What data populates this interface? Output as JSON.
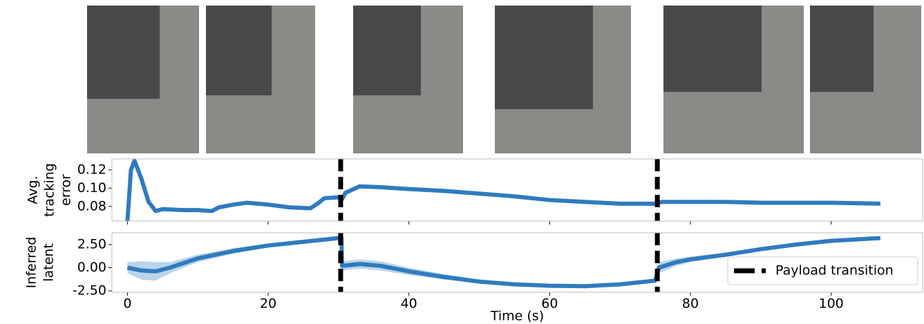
{
  "chart_data": [
    {
      "type": "line",
      "ylabel": [
        "Avg.",
        "tracking",
        "error"
      ],
      "xlim": [
        -2.2,
        113
      ],
      "ylim": [
        0.064,
        0.132
      ],
      "xticks": [
        0,
        20,
        40,
        60,
        80,
        100
      ],
      "yticks": [
        {
          "value": 0.08,
          "label": "0.08"
        },
        {
          "value": 0.1,
          "label": "0.10"
        },
        {
          "value": 0.12,
          "label": "0.12"
        }
      ],
      "vlines": [
        30.3,
        75.3
      ],
      "series": [
        {
          "color": "#2f7bbf",
          "x": [
            0,
            0.5,
            1,
            2,
            3,
            4,
            5,
            8,
            10,
            12,
            13,
            15,
            17,
            20,
            23,
            26,
            27,
            28,
            30,
            30.5,
            31,
            33,
            36,
            40,
            45,
            50,
            55,
            60,
            65,
            70,
            75,
            76,
            80,
            85,
            90,
            95,
            100,
            107
          ],
          "values": [
            0.064,
            0.12,
            0.13,
            0.11,
            0.085,
            0.075,
            0.077,
            0.076,
            0.076,
            0.075,
            0.079,
            0.082,
            0.084,
            0.082,
            0.079,
            0.078,
            0.083,
            0.089,
            0.09,
            0.088,
            0.095,
            0.102,
            0.101,
            0.099,
            0.097,
            0.094,
            0.091,
            0.087,
            0.085,
            0.083,
            0.083,
            0.085,
            0.085,
            0.085,
            0.084,
            0.084,
            0.084,
            0.083
          ]
        }
      ]
    },
    {
      "type": "line",
      "ylabel": [
        "Inferred",
        "latent"
      ],
      "xlabel": "Time (s)",
      "xlim": [
        -2.2,
        113
      ],
      "ylim": [
        -2.65,
        3.77
      ],
      "xticks": [
        0,
        20,
        40,
        60,
        80,
        100
      ],
      "yticks": [
        {
          "value": -2.5,
          "label": "-2.50"
        },
        {
          "value": 0,
          "label": "0.00"
        },
        {
          "value": 2.5,
          "label": "2.50"
        }
      ],
      "vlines": [
        30.3,
        75.3
      ],
      "legend_label": "Payload transition",
      "legend_loc": "lower right",
      "series": [
        {
          "color": "#2f7bbf",
          "band_color": "#a9c9e6",
          "x": [
            0,
            2,
            4,
            6,
            10,
            15,
            20,
            25,
            30,
            30.4,
            30.5,
            33,
            36,
            40,
            45,
            50,
            55,
            60,
            65,
            70,
            75,
            75.5,
            78,
            80,
            85,
            90,
            95,
            100,
            107
          ],
          "values": [
            0,
            -0.3,
            -0.4,
            0,
            1.0,
            1.8,
            2.4,
            2.8,
            3.2,
            3.3,
            0.2,
            0.4,
            0.2,
            -0.4,
            -1.0,
            -1.5,
            -1.8,
            -1.95,
            -2.0,
            -1.8,
            -1.4,
            0,
            0.6,
            0.9,
            1.4,
            2.0,
            2.5,
            2.9,
            3.2
          ],
          "lower": [
            -0.6,
            -1.3,
            -1.4,
            -0.6,
            0.6,
            1.5,
            2.2,
            2.6,
            3.0,
            3.1,
            -0.3,
            -0.1,
            -0.3,
            -0.8,
            -1.3,
            -1.7,
            -1.95,
            -2.1,
            -2.1,
            -1.9,
            -1.6,
            -0.6,
            0.2,
            0.6,
            1.2,
            1.8,
            2.4,
            2.8,
            3.1
          ],
          "upper": [
            0.6,
            0.7,
            0.6,
            0.6,
            1.4,
            2.1,
            2.6,
            3.0,
            3.4,
            3.5,
            0.7,
            0.9,
            0.7,
            0.0,
            -0.7,
            -1.3,
            -1.65,
            -1.8,
            -1.9,
            -1.7,
            -1.2,
            0.6,
            1.0,
            1.2,
            1.6,
            2.2,
            2.6,
            3.0,
            3.3
          ]
        }
      ]
    }
  ]
}
